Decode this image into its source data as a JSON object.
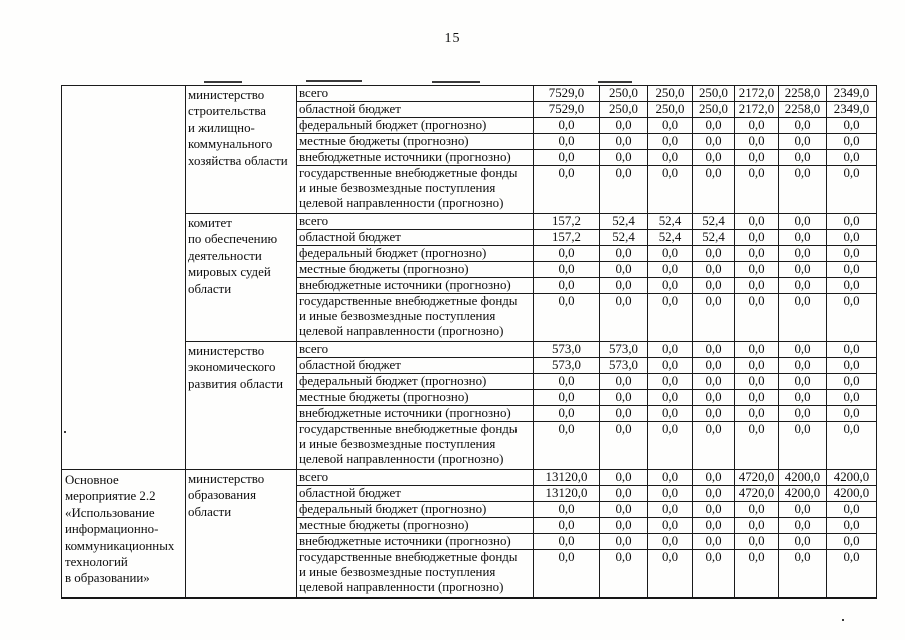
{
  "page": {
    "number": "15"
  },
  "table": {
    "activity_groups": [
      {
        "activity": "",
        "block_indices": [
          0,
          1,
          2
        ]
      },
      {
        "activity": "Основное\nмероприятие 2.2\n«Использование\nинформационно-\nкоммуникационных\nтехнологий\nв образовании»",
        "block_indices": [
          3
        ]
      }
    ],
    "blocks": [
      {
        "ministry": "министерство\nстроительства\nи жилищно-\nкоммунального\nхозяйства области",
        "rows": [
          {
            "label": "всего",
            "values": [
              "7529,0",
              "250,0",
              "250,0",
              "250,0",
              "2172,0",
              "2258,0",
              "2349,0"
            ]
          },
          {
            "label": "областной бюджет",
            "values": [
              "7529,0",
              "250,0",
              "250,0",
              "250,0",
              "2172,0",
              "2258,0",
              "2349,0"
            ]
          },
          {
            "label": "федеральный бюджет (прогнозно)",
            "values": [
              "0,0",
              "0,0",
              "0,0",
              "0,0",
              "0,0",
              "0,0",
              "0,0"
            ]
          },
          {
            "label": "местные бюджеты (прогнозно)",
            "values": [
              "0,0",
              "0,0",
              "0,0",
              "0,0",
              "0,0",
              "0,0",
              "0,0"
            ]
          },
          {
            "label": "внебюджетные источники (прогнозно)",
            "values": [
              "0,0",
              "0,0",
              "0,0",
              "0,0",
              "0,0",
              "0,0",
              "0,0"
            ]
          },
          {
            "label": "государственные внебюджетные фонды\nи иные безвозмездные поступления\nцелевой направленности (прогнозно)",
            "values": [
              "0,0",
              "0,0",
              "0,0",
              "0,0",
              "0,0",
              "0,0",
              "0,0"
            ],
            "tall": true
          }
        ]
      },
      {
        "ministry": "комитет\nпо обеспечению\nдеятельности\nмировых судей\nобласти",
        "rows": [
          {
            "label": "всего",
            "values": [
              "157,2",
              "52,4",
              "52,4",
              "52,4",
              "0,0",
              "0,0",
              "0,0"
            ]
          },
          {
            "label": "областной бюджет",
            "values": [
              "157,2",
              "52,4",
              "52,4",
              "52,4",
              "0,0",
              "0,0",
              "0,0"
            ]
          },
          {
            "label": "федеральный бюджет (прогнозно)",
            "values": [
              "0,0",
              "0,0",
              "0,0",
              "0,0",
              "0,0",
              "0,0",
              "0,0"
            ]
          },
          {
            "label": "местные бюджеты (прогнозно)",
            "values": [
              "0,0",
              "0,0",
              "0,0",
              "0,0",
              "0,0",
              "0,0",
              "0,0"
            ]
          },
          {
            "label": "внебюджетные источники (прогнозно)",
            "values": [
              "0,0",
              "0,0",
              "0,0",
              "0,0",
              "0,0",
              "0,0",
              "0,0"
            ]
          },
          {
            "label": "государственные внебюджетные фонды\nи иные безвозмездные поступления\nцелевой направленности (прогнозно)",
            "values": [
              "0,0",
              "0,0",
              "0,0",
              "0,0",
              "0,0",
              "0,0",
              "0,0"
            ],
            "tall": true
          }
        ]
      },
      {
        "ministry": "министерство\nэкономического\nразвития области",
        "rows": [
          {
            "label": "всего",
            "values": [
              "573,0",
              "573,0",
              "0,0",
              "0,0",
              "0,0",
              "0,0",
              "0,0"
            ]
          },
          {
            "label": "областной бюджет",
            "values": [
              "573,0",
              "573,0",
              "0,0",
              "0,0",
              "0,0",
              "0,0",
              "0,0"
            ]
          },
          {
            "label": "федеральный бюджет (прогнозно)",
            "values": [
              "0,0",
              "0,0",
              "0,0",
              "0,0",
              "0,0",
              "0,0",
              "0,0"
            ]
          },
          {
            "label": "местные бюджеты (прогнозно)",
            "values": [
              "0,0",
              "0,0",
              "0,0",
              "0,0",
              "0,0",
              "0,0",
              "0,0"
            ]
          },
          {
            "label": "внебюджетные источники (прогнозно)",
            "values": [
              "0,0",
              "0,0",
              "0,0",
              "0,0",
              "0,0",
              "0,0",
              "0,0"
            ]
          },
          {
            "label": "государственные внебюджетные фонды\nи иные безвозмездные поступления\nцелевой направленности (прогнозно)",
            "values": [
              "0,0",
              "0,0",
              "0,0",
              "0,0",
              "0,0",
              "0,0",
              "0,0"
            ],
            "tall": true
          }
        ]
      },
      {
        "ministry": "министерство\nобразования\nобласти",
        "rows": [
          {
            "label": "всего",
            "values": [
              "13120,0",
              "0,0",
              "0,0",
              "0,0",
              "4720,0",
              "4200,0",
              "4200,0"
            ]
          },
          {
            "label": "областной бюджет",
            "values": [
              "13120,0",
              "0,0",
              "0,0",
              "0,0",
              "4720,0",
              "4200,0",
              "4200,0"
            ]
          },
          {
            "label": "федеральный бюджет (прогнозно)",
            "values": [
              "0,0",
              "0,0",
              "0,0",
              "0,0",
              "0,0",
              "0,0",
              "0,0"
            ]
          },
          {
            "label": "местные бюджеты (прогнозно)",
            "values": [
              "0,0",
              "0,0",
              "0,0",
              "0,0",
              "0,0",
              "0,0",
              "0,0"
            ]
          },
          {
            "label": "внебюджетные источники (прогнозно)",
            "values": [
              "0,0",
              "0,0",
              "0,0",
              "0,0",
              "0,0",
              "0,0",
              "0,0"
            ]
          },
          {
            "label": "государственные внебюджетные фонды\nи иные безвозмездные поступления\nцелевой направленности (прогнозно)",
            "values": [
              "0,0",
              "0,0",
              "0,0",
              "0,0",
              "0,0",
              "0,0",
              "0,0"
            ],
            "tall": true
          }
        ]
      }
    ]
  }
}
